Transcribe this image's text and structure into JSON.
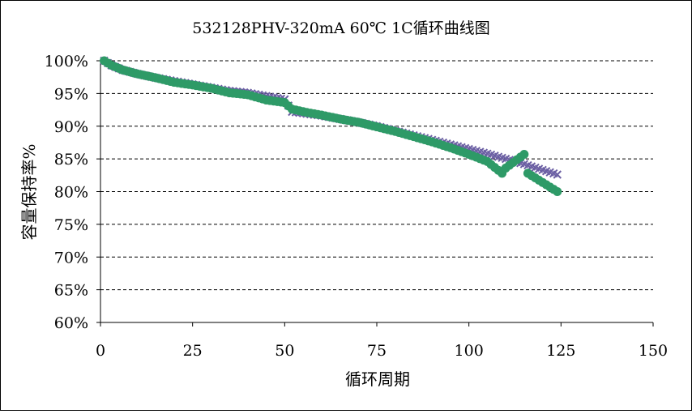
{
  "chart_data": {
    "type": "scatter",
    "title": "532128PHV-320mA 60℃ 1C循环曲线图",
    "xlabel": "循环周期",
    "ylabel": "容量保持率%",
    "xlim": [
      0,
      150
    ],
    "ylim": [
      60,
      100
    ],
    "x_ticks": [
      0,
      25,
      50,
      75,
      100,
      125,
      150
    ],
    "y_ticks": [
      60,
      65,
      70,
      75,
      80,
      85,
      90,
      95,
      100
    ],
    "x_tick_labels": [
      "0",
      "25",
      "50",
      "75",
      "100",
      "125",
      "150"
    ],
    "y_tick_labels": [
      "60%",
      "65%",
      "70%",
      "75%",
      "80%",
      "85%",
      "90%",
      "95%",
      "100%"
    ],
    "grid": "horizontal dashed",
    "legend": "none",
    "series": [
      {
        "marker": "cross",
        "color": "#6b5fa3",
        "points": [
          [
            1,
            100
          ],
          [
            3,
            99.3
          ],
          [
            6,
            98.6
          ],
          [
            10,
            98
          ],
          [
            15,
            97.4
          ],
          [
            20,
            96.9
          ],
          [
            25,
            96.4
          ],
          [
            30,
            95.9
          ],
          [
            35,
            95.4
          ],
          [
            40,
            95.1
          ],
          [
            45,
            94.6
          ],
          [
            50,
            94.1
          ],
          [
            52,
            92.2
          ],
          [
            56,
            91.9
          ],
          [
            60,
            91.6
          ],
          [
            65,
            91.1
          ],
          [
            70,
            90.6
          ],
          [
            75,
            90
          ],
          [
            80,
            89.3
          ],
          [
            85,
            88.6
          ],
          [
            90,
            87.9
          ],
          [
            95,
            87.2
          ],
          [
            100,
            86.5
          ],
          [
            105,
            85.8
          ],
          [
            110,
            85
          ],
          [
            115,
            84.2
          ],
          [
            120,
            83.3
          ],
          [
            124,
            82.6
          ]
        ]
      },
      {
        "marker": "circle",
        "color": "#2e9a67",
        "points": [
          [
            1,
            100
          ],
          [
            3,
            99.3
          ],
          [
            6,
            98.6
          ],
          [
            10,
            98
          ],
          [
            15,
            97.4
          ],
          [
            20,
            96.7
          ],
          [
            25,
            96.3
          ],
          [
            30,
            95.8
          ],
          [
            35,
            95.1
          ],
          [
            40,
            94.8
          ],
          [
            45,
            94
          ],
          [
            50,
            93.6
          ],
          [
            52,
            92.6
          ],
          [
            56,
            92.1
          ],
          [
            60,
            91.7
          ],
          [
            65,
            91.1
          ],
          [
            70,
            90.6
          ],
          [
            75,
            89.9
          ],
          [
            80,
            89.2
          ],
          [
            85,
            88.4
          ],
          [
            90,
            87.6
          ],
          [
            95,
            86.7
          ],
          [
            100,
            85.7
          ],
          [
            105,
            84.6
          ],
          [
            109,
            82.8
          ],
          [
            110,
            83.6
          ],
          [
            115,
            85.7
          ],
          [
            116,
            82.8
          ],
          [
            120,
            81.4
          ],
          [
            124,
            80
          ]
        ]
      }
    ]
  }
}
